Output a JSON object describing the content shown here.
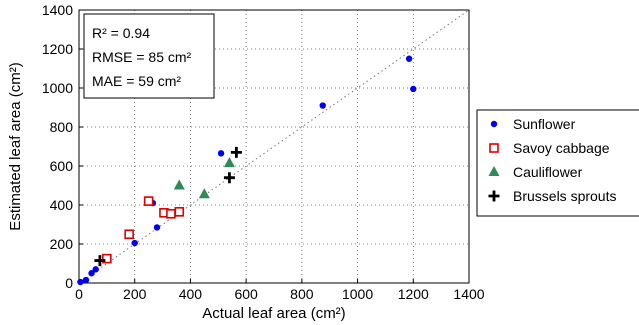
{
  "chart_data": {
    "type": "scatter",
    "xlabel": "Actual leaf area (cm²)",
    "ylabel": "Estimated leaf area (cm²)",
    "xlim": [
      0,
      1400
    ],
    "ylim": [
      0,
      1400
    ],
    "xticks": [
      0,
      200,
      400,
      600,
      800,
      1000,
      1200,
      1400
    ],
    "yticks": [
      0,
      200,
      400,
      600,
      800,
      1000,
      1200,
      1400
    ],
    "grid": true,
    "reference_line": "1:1 dotted",
    "legend_position": "right",
    "stats": [
      "R² = 0.94",
      "RMSE = 85 cm²",
      "MAE = 59 cm²"
    ],
    "series": [
      {
        "name": "Sunflower",
        "marker": "circle",
        "color": "#0000ee",
        "points": [
          [
            5,
            5
          ],
          [
            25,
            15
          ],
          [
            45,
            50
          ],
          [
            60,
            70
          ],
          [
            200,
            205
          ],
          [
            265,
            410
          ],
          [
            280,
            285
          ],
          [
            510,
            665
          ],
          [
            875,
            910
          ],
          [
            1185,
            1150
          ],
          [
            1200,
            995
          ]
        ]
      },
      {
        "name": "Savoy cabbage",
        "marker": "square-open",
        "color": "#dd0000",
        "points": [
          [
            100,
            125
          ],
          [
            180,
            250
          ],
          [
            250,
            420
          ],
          [
            305,
            360
          ],
          [
            330,
            355
          ],
          [
            360,
            365
          ]
        ]
      },
      {
        "name": "Cauliflower",
        "marker": "triangle",
        "color": "#2e8b57",
        "points": [
          [
            360,
            500
          ],
          [
            450,
            455
          ],
          [
            540,
            615
          ]
        ]
      },
      {
        "name": "Brussels sprouts",
        "marker": "plus",
        "color": "#000000",
        "points": [
          [
            75,
            115
          ],
          [
            540,
            540
          ],
          [
            565,
            670
          ]
        ]
      }
    ]
  }
}
